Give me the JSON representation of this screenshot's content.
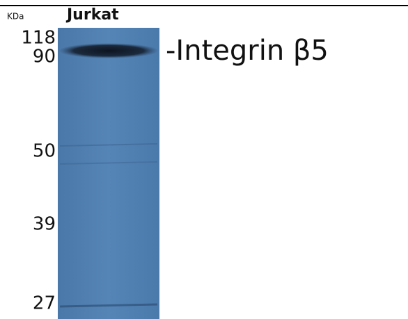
{
  "unit_label": "KDa",
  "lane_label": "Jurkat",
  "markers": [
    118,
    90,
    50,
    39,
    27
  ],
  "band_label": "-Integrin β5"
}
